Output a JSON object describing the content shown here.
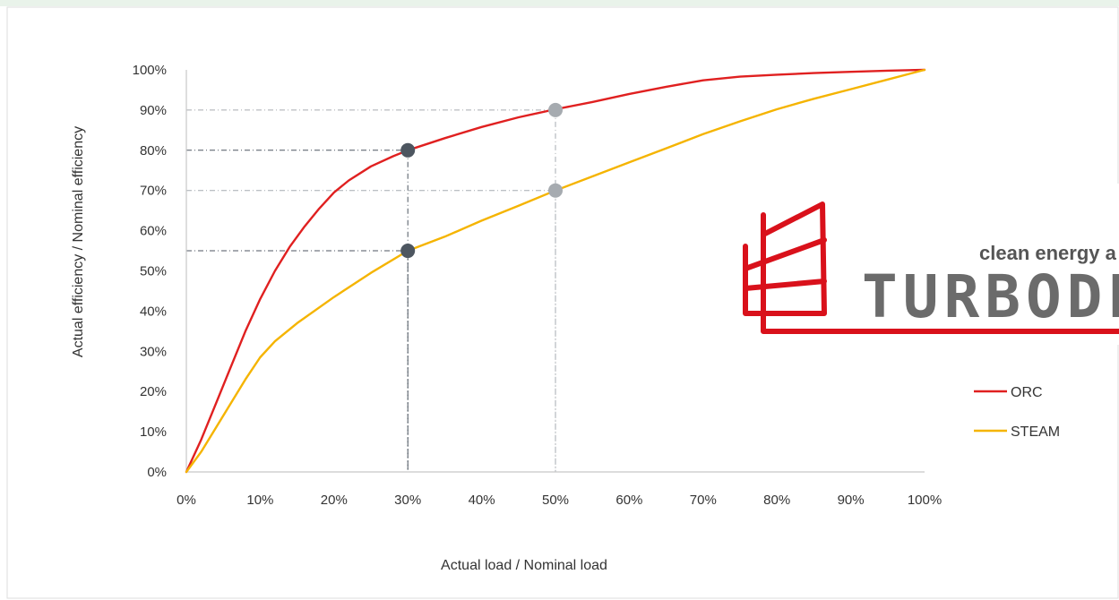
{
  "chart_data": {
    "type": "line",
    "title": "",
    "xlabel": "Actual load / Nominal load",
    "ylabel": "Actual efficiency / Nominal efficiency",
    "xlim": [
      0,
      100
    ],
    "ylim": [
      0,
      100
    ],
    "x_ticks": [
      "0%",
      "10%",
      "20%",
      "30%",
      "40%",
      "50%",
      "60%",
      "70%",
      "80%",
      "90%",
      "100%"
    ],
    "y_ticks": [
      "0%",
      "10%",
      "20%",
      "30%",
      "40%",
      "50%",
      "60%",
      "70%",
      "80%",
      "90%",
      "100%"
    ],
    "legend_position": "right",
    "grid": false,
    "series": [
      {
        "name": "ORC",
        "color": "#e02020",
        "points": [
          [
            0,
            0
          ],
          [
            2,
            8
          ],
          [
            4,
            17
          ],
          [
            6,
            26
          ],
          [
            8,
            35
          ],
          [
            10,
            43
          ],
          [
            12,
            50
          ],
          [
            14,
            56
          ],
          [
            16,
            61
          ],
          [
            18,
            65.5
          ],
          [
            20,
            69.5
          ],
          [
            22,
            72.5
          ],
          [
            25,
            76
          ],
          [
            28,
            78.5
          ],
          [
            30,
            80
          ],
          [
            35,
            83
          ],
          [
            40,
            85.8
          ],
          [
            45,
            88.2
          ],
          [
            50,
            90.2
          ],
          [
            55,
            92
          ],
          [
            60,
            94
          ],
          [
            65,
            95.8
          ],
          [
            70,
            97.4
          ],
          [
            75,
            98.3
          ],
          [
            80,
            98.8
          ],
          [
            85,
            99.2
          ],
          [
            90,
            99.5
          ],
          [
            95,
            99.8
          ],
          [
            100,
            100
          ]
        ]
      },
      {
        "name": "STEAM",
        "color": "#f5b400",
        "points": [
          [
            0,
            0
          ],
          [
            2,
            5
          ],
          [
            4,
            11
          ],
          [
            6,
            17
          ],
          [
            8,
            23
          ],
          [
            10,
            28.5
          ],
          [
            12,
            32.5
          ],
          [
            15,
            37
          ],
          [
            20,
            43.5
          ],
          [
            25,
            49.5
          ],
          [
            30,
            55
          ],
          [
            35,
            58.5
          ],
          [
            40,
            62.5
          ],
          [
            45,
            66.2
          ],
          [
            50,
            70
          ],
          [
            55,
            73.5
          ],
          [
            60,
            77
          ],
          [
            65,
            80.5
          ],
          [
            70,
            84
          ],
          [
            75,
            87.2
          ],
          [
            80,
            90.2
          ],
          [
            85,
            92.8
          ],
          [
            90,
            95.2
          ],
          [
            95,
            97.6
          ],
          [
            100,
            100
          ]
        ]
      }
    ],
    "highlight_points": [
      {
        "x": 30,
        "y": 80,
        "color": "#4d5660"
      },
      {
        "x": 30,
        "y": 55,
        "color": "#4d5660"
      },
      {
        "x": 50,
        "y": 90,
        "color": "#a6abb0"
      },
      {
        "x": 50,
        "y": 70,
        "color": "#a6abb0"
      }
    ],
    "reference_lines": [
      {
        "x": 30,
        "y": 80,
        "color": "#4d5660"
      },
      {
        "x": 30,
        "y": 55,
        "color": "#4d5660"
      },
      {
        "x": 50,
        "y": 90,
        "color": "#a6abb0"
      },
      {
        "x": 50,
        "y": 70,
        "color": "#a6abb0"
      }
    ]
  },
  "logo": {
    "tagline": "clean energy a",
    "wordmark": "TURBODE",
    "color": "#d9111b"
  },
  "colors": {
    "axis": "#c8c8c8",
    "tick_text": "#333333"
  }
}
